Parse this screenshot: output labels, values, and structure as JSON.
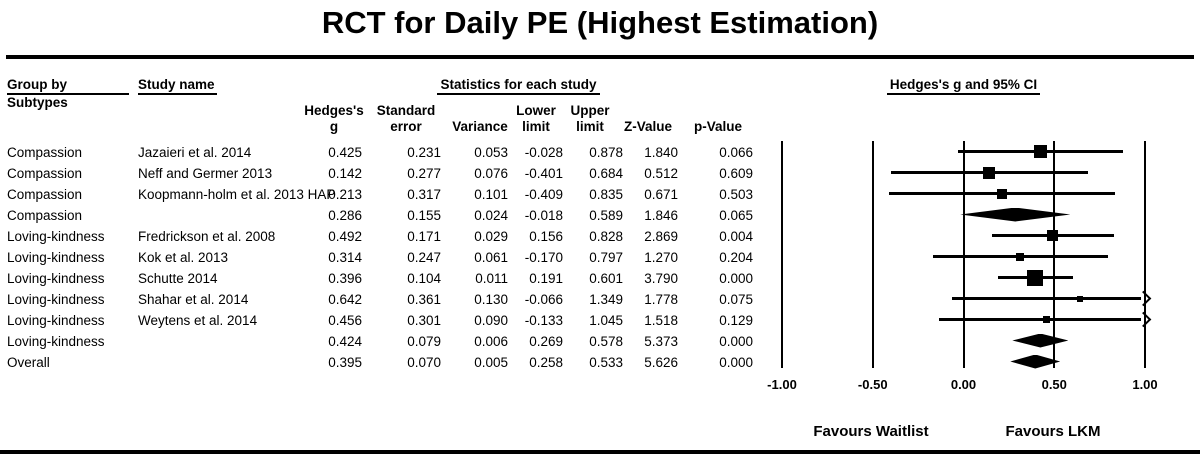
{
  "chart_data": {
    "type": "forest",
    "title": "RCT for Daily PE (Highest Estimation)",
    "header": {
      "group_line1": "Group by",
      "group_line2": "Subtypes",
      "study": "Study name",
      "stats_heading": "Statistics for each study",
      "effect_heading": "Hedges's g and 95% CI",
      "columns": [
        {
          "id": "g",
          "line1": "Hedges's",
          "line2": "g"
        },
        {
          "id": "se",
          "line1": "Standard",
          "line2": "error"
        },
        {
          "id": "variance",
          "line1": "",
          "line2": "Variance"
        },
        {
          "id": "lower",
          "line1": "Lower",
          "line2": "limit"
        },
        {
          "id": "upper",
          "line1": "Upper",
          "line2": "limit"
        },
        {
          "id": "z",
          "line1": "",
          "line2": "Z-Value"
        },
        {
          "id": "p",
          "line1": "",
          "line2": "p-Value"
        }
      ]
    },
    "axis": {
      "xlim": [
        -1.0,
        1.0
      ],
      "tick_values": [
        -1.0,
        -0.5,
        0.0,
        0.5,
        1.0
      ],
      "tick_labels": [
        "-1.00",
        "-0.50",
        "0.00",
        "0.50",
        "1.00"
      ]
    },
    "footer": {
      "favours_left": "Favours Waitlist",
      "favours_right": "Favours LKM"
    },
    "rows": [
      {
        "group": "Compassion",
        "study": "Jazaieri et al. 2014",
        "g": "0.425",
        "se": "0.231",
        "variance": "0.053",
        "lower": "-0.028",
        "upper": "0.878",
        "z": "1.840",
        "p": "0.066",
        "marker": "square",
        "size": 13
      },
      {
        "group": "Compassion",
        "study": "Neff and Germer 2013",
        "g": "0.142",
        "se": "0.277",
        "variance": "0.076",
        "lower": "-0.401",
        "upper": "0.684",
        "z": "0.512",
        "p": "0.609",
        "marker": "square",
        "size": 12
      },
      {
        "group": "Compassion",
        "study": "Koopmann-holm et al. 2013 HAP",
        "g": "0.213",
        "se": "0.317",
        "variance": "0.101",
        "lower": "-0.409",
        "upper": "0.835",
        "z": "0.671",
        "p": "0.503",
        "marker": "square",
        "size": 10
      },
      {
        "group": "Compassion",
        "study": "",
        "g": "0.286",
        "se": "0.155",
        "variance": "0.024",
        "lower": "-0.018",
        "upper": "0.589",
        "z": "1.846",
        "p": "0.065",
        "marker": "diamond"
      },
      {
        "group": "Loving-kindness",
        "study": "Fredrickson et al. 2008",
        "g": "0.492",
        "se": "0.171",
        "variance": "0.029",
        "lower": "0.156",
        "upper": "0.828",
        "z": "2.869",
        "p": "0.004",
        "marker": "square",
        "size": 11
      },
      {
        "group": "Loving-kindness",
        "study": "Kok et al. 2013",
        "g": "0.314",
        "se": "0.247",
        "variance": "0.061",
        "lower": "-0.170",
        "upper": "0.797",
        "z": "1.270",
        "p": "0.204",
        "marker": "square",
        "size": 8
      },
      {
        "group": "Loving-kindness",
        "study": "Schutte 2014",
        "g": "0.396",
        "se": "0.104",
        "variance": "0.011",
        "lower": "0.191",
        "upper": "0.601",
        "z": "3.790",
        "p": "0.000",
        "marker": "square",
        "size": 16
      },
      {
        "group": "Loving-kindness",
        "study": "Shahar et al. 2014",
        "g": "0.642",
        "se": "0.361",
        "variance": "0.130",
        "lower": "-0.066",
        "upper": "1.349",
        "z": "1.778",
        "p": "0.075",
        "marker": "square",
        "size": 6
      },
      {
        "group": "Loving-kindness",
        "study": "Weytens et al. 2014",
        "g": "0.456",
        "se": "0.301",
        "variance": "0.090",
        "lower": "-0.133",
        "upper": "1.045",
        "z": "1.518",
        "p": "0.129",
        "marker": "square",
        "size": 7
      },
      {
        "group": "Loving-kindness",
        "study": "",
        "g": "0.424",
        "se": "0.079",
        "variance": "0.006",
        "lower": "0.269",
        "upper": "0.578",
        "z": "5.373",
        "p": "0.000",
        "marker": "diamond"
      },
      {
        "group": "Overall",
        "study": "",
        "g": "0.395",
        "se": "0.070",
        "variance": "0.005",
        "lower": "0.258",
        "upper": "0.533",
        "z": "5.626",
        "p": "0.000",
        "marker": "diamond"
      }
    ],
    "colors": {
      "ink": "#000000",
      "background": "#ffffff"
    }
  }
}
